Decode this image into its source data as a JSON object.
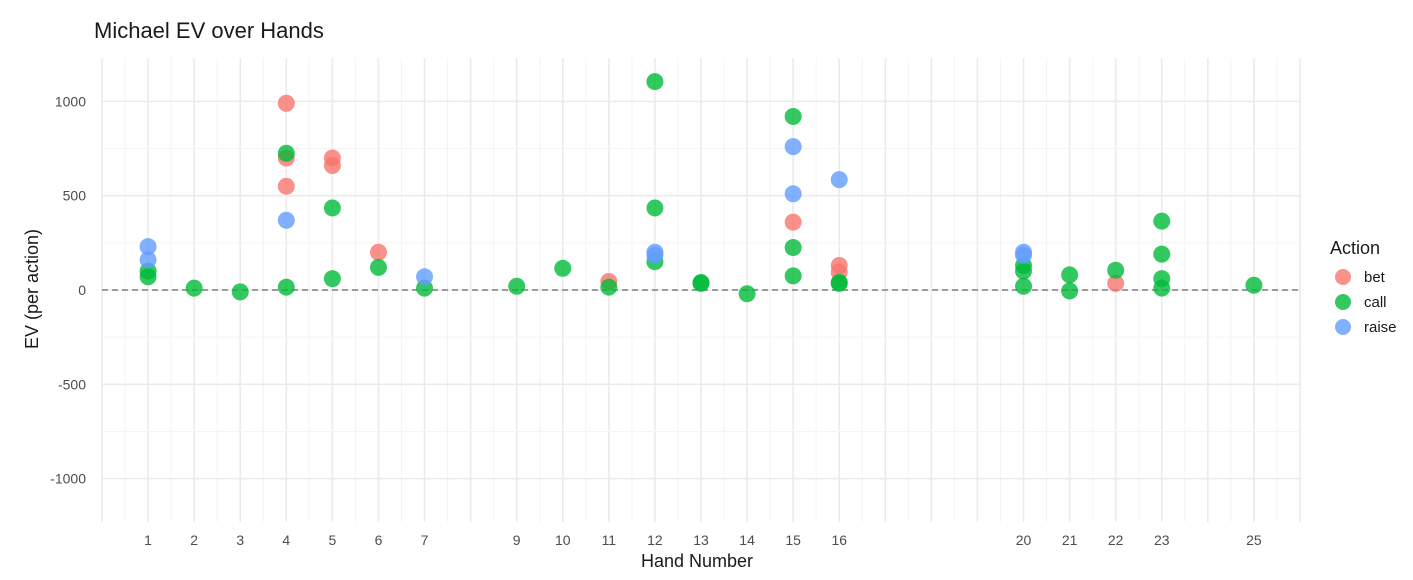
{
  "chart_data": {
    "type": "scatter",
    "title": "Michael EV over Hands",
    "xlabel": "Hand Number",
    "ylabel": "EV (per action)",
    "x_ticks": [
      1,
      2,
      3,
      4,
      5,
      6,
      7,
      9,
      10,
      11,
      12,
      13,
      14,
      15,
      16,
      20,
      21,
      22,
      23,
      25
    ],
    "y_ticks": [
      -1000,
      -500,
      0,
      500,
      1000
    ],
    "xlim": [
      0,
      26
    ],
    "ylim": [
      -1230,
      1230
    ],
    "grid": true,
    "reference_line": {
      "y": 0,
      "style": "dashed"
    },
    "legend": {
      "title": "Action",
      "position": "right"
    },
    "series": [
      {
        "name": "bet",
        "color": "#F8766D",
        "points": [
          [
            4,
            990
          ],
          [
            4,
            700
          ],
          [
            4,
            550
          ],
          [
            5,
            700
          ],
          [
            5,
            660
          ],
          [
            6,
            200
          ],
          [
            11,
            45
          ],
          [
            15,
            360
          ],
          [
            16,
            130
          ],
          [
            16,
            95
          ],
          [
            22,
            35
          ]
        ]
      },
      {
        "name": "call",
        "color": "#00BA38",
        "points": [
          [
            1,
            100
          ],
          [
            1,
            70
          ],
          [
            2,
            10
          ],
          [
            3,
            -10
          ],
          [
            4,
            725
          ],
          [
            4,
            15
          ],
          [
            5,
            435
          ],
          [
            5,
            60
          ],
          [
            6,
            120
          ],
          [
            7,
            10
          ],
          [
            9,
            20
          ],
          [
            10,
            115
          ],
          [
            11,
            15
          ],
          [
            12,
            1105
          ],
          [
            12,
            435
          ],
          [
            12,
            150
          ],
          [
            13,
            40
          ],
          [
            13,
            35
          ],
          [
            14,
            -20
          ],
          [
            15,
            920
          ],
          [
            15,
            225
          ],
          [
            15,
            75
          ],
          [
            16,
            40
          ],
          [
            16,
            35
          ],
          [
            20,
            130
          ],
          [
            20,
            100
          ],
          [
            20,
            20
          ],
          [
            21,
            80
          ],
          [
            21,
            -5
          ],
          [
            22,
            105
          ],
          [
            23,
            365
          ],
          [
            23,
            190
          ],
          [
            23,
            60
          ],
          [
            23,
            10
          ],
          [
            25,
            25
          ]
        ]
      },
      {
        "name": "raise",
        "color": "#619CFF",
        "points": [
          [
            1,
            230
          ],
          [
            1,
            160
          ],
          [
            4,
            370
          ],
          [
            7,
            70
          ],
          [
            12,
            200
          ],
          [
            12,
            185
          ],
          [
            15,
            760
          ],
          [
            15,
            510
          ],
          [
            16,
            585
          ],
          [
            20,
            200
          ],
          [
            20,
            185
          ]
        ]
      }
    ]
  }
}
